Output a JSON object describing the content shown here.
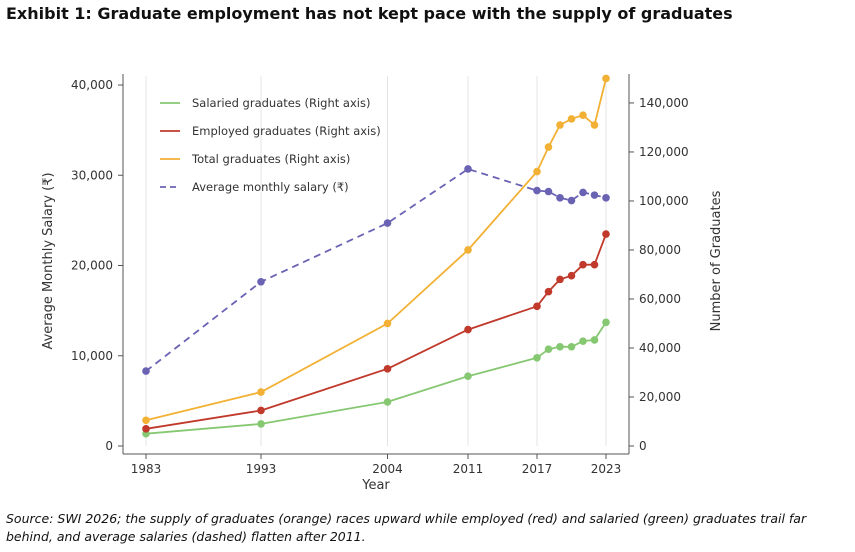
{
  "title": "Exhibit 1: Graduate employment has not kept pace with the supply of graduates",
  "source": "Source: SWI 2026; the supply of graduates (orange) races upward while employed (red) and salaried (green) graduates trail far behind, and average salaries (dashed) flatten after 2011.",
  "chart_data": {
    "type": "line",
    "xlabel": "Year",
    "ylabel_left": "Average Monthly Salary (₹)",
    "ylabel_right": "Number of Graduates",
    "xlim": [
      1981,
      2025
    ],
    "ylim_left": [
      0,
      41000
    ],
    "ylim_right": [
      0,
      151000
    ],
    "x_ticks": [
      1983,
      1993,
      2004,
      2011,
      2017,
      2023
    ],
    "y_ticks_left": [
      0,
      10000,
      20000,
      30000,
      40000
    ],
    "y_tick_labels_left": [
      "0",
      "10,000",
      "20,000",
      "30,000",
      "40,000"
    ],
    "y_ticks_right": [
      0,
      20000,
      40000,
      60000,
      80000,
      100000,
      120000,
      140000
    ],
    "y_tick_labels_right": [
      "0",
      "20,000",
      "40,000",
      "60,000",
      "80,000",
      "100,000",
      "120,000",
      "140,000"
    ],
    "grid": "vertical",
    "legend_position": "top-left",
    "series": [
      {
        "name": "Salaried graduates (Right axis)",
        "axis": "right",
        "style": "solid",
        "color": "#86c872",
        "x": [
          1983,
          1993,
          2004,
          2011,
          2017,
          2018,
          2019,
          2020,
          2021,
          2022,
          2023
        ],
        "y": [
          5000,
          9000,
          18000,
          28500,
          36000,
          39500,
          40500,
          40500,
          42800,
          43300,
          50500
        ]
      },
      {
        "name": "Employed graduates (Right axis)",
        "axis": "right",
        "style": "solid",
        "color": "#c0392b",
        "x": [
          1983,
          1993,
          2004,
          2011,
          2017,
          2018,
          2019,
          2020,
          2021,
          2022,
          2023
        ],
        "y": [
          7000,
          14500,
          31500,
          47500,
          57000,
          63000,
          68000,
          69500,
          74000,
          74000,
          86500
        ]
      },
      {
        "name": "Total graduates (Right axis)",
        "axis": "right",
        "style": "solid",
        "color": "#f2b134",
        "x": [
          1983,
          1993,
          2004,
          2011,
          2017,
          2018,
          2019,
          2020,
          2021,
          2022,
          2023
        ],
        "y": [
          10500,
          22000,
          50000,
          80000,
          112000,
          122000,
          131000,
          133500,
          135000,
          131000,
          150000
        ]
      },
      {
        "name": "Average monthly salary (₹)",
        "axis": "left",
        "style": "dashed",
        "color": "#6a63b4",
        "x": [
          1983,
          1993,
          2004,
          2011,
          2017,
          2018,
          2019,
          2020,
          2021,
          2022,
          2023
        ],
        "y": [
          8300,
          18200,
          24700,
          30700,
          28300,
          28200,
          27500,
          27200,
          28100,
          27800,
          27500
        ]
      }
    ]
  }
}
